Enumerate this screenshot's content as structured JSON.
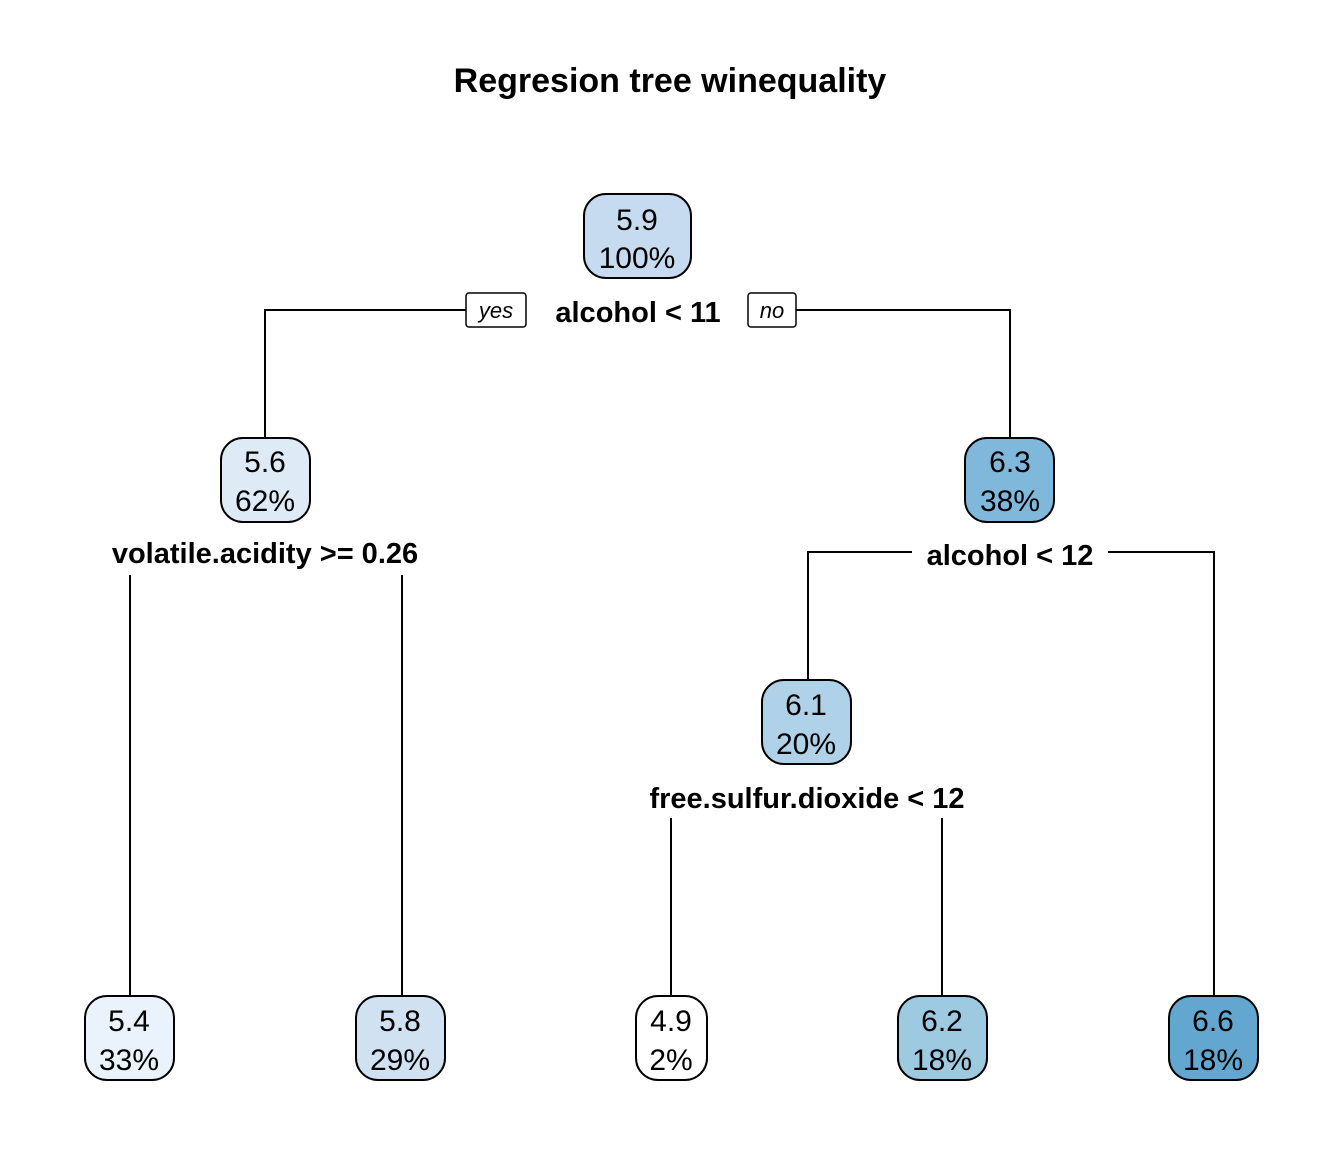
{
  "title": "Regresion tree winequality",
  "branch_tags": {
    "yes": "yes",
    "no": "no"
  },
  "nodes": {
    "root": {
      "value": "5.9",
      "pct": "100%",
      "split": "alcohol < 11",
      "color": "#c6dbef"
    },
    "n2": {
      "value": "5.6",
      "pct": "62%",
      "split": "volatile.acidity >= 0.26",
      "color": "#deebf7"
    },
    "n3": {
      "value": "6.3",
      "pct": "38%",
      "split": "alcohol < 12",
      "color": "#7fb8da"
    },
    "n4": {
      "value": "5.4",
      "pct": "33%",
      "color": "#eaf3fb"
    },
    "n5": {
      "value": "5.8",
      "pct": "29%",
      "color": "#d0e2f2"
    },
    "n6": {
      "value": "6.1",
      "pct": "20%",
      "split": "free.sulfur.dioxide < 12",
      "color": "#b0d2e8"
    },
    "n12": {
      "value": "4.9",
      "pct": "2%",
      "color": "#ffffff"
    },
    "n13": {
      "value": "6.2",
      "pct": "18%",
      "color": "#9ecae1"
    },
    "n7": {
      "value": "6.6",
      "pct": "18%",
      "color": "#63a7d0"
    }
  }
}
